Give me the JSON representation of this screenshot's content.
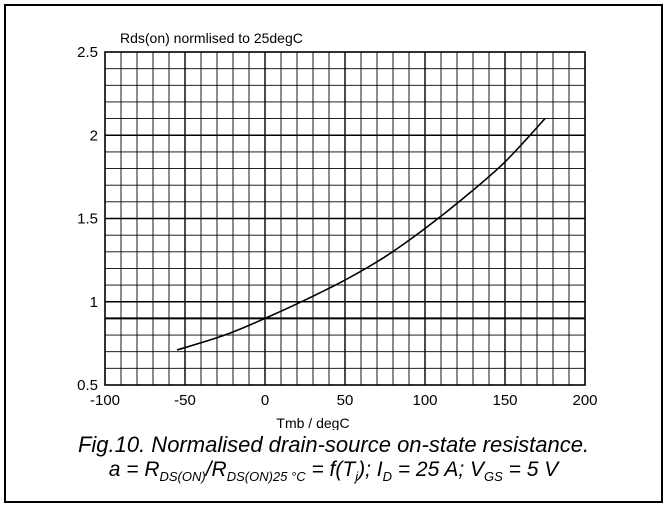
{
  "chart_data": {
    "type": "line",
    "title": "Rds(on) normlised to 25degC",
    "xlabel": "Tmb / degC",
    "ylabel": "",
    "xlim": [
      -100,
      200
    ],
    "ylim": [
      0.5,
      2.5
    ],
    "xticks": [
      -100,
      -50,
      0,
      50,
      100,
      150,
      200
    ],
    "xtick_labels": [
      "-100",
      "-50",
      "0",
      "50",
      "100",
      "150",
      "200"
    ],
    "yticks": [
      0.5,
      1,
      1.5,
      2,
      2.5
    ],
    "ytick_labels": [
      "0.5",
      "1",
      "1.5",
      "2",
      "2.5"
    ],
    "grid": true,
    "reference_lines_y": [
      0.9
    ],
    "series": [
      {
        "x": [
          -55,
          -25,
          0,
          25,
          50,
          75,
          100,
          125,
          150,
          175
        ],
        "y": [
          0.71,
          0.8,
          0.9,
          1.01,
          1.13,
          1.27,
          1.44,
          1.63,
          1.84,
          2.1
        ]
      }
    ]
  },
  "caption": {
    "line1": "Fig.10.   Normalised drain-source on-state resistance.",
    "line2": {
      "a_eq": "a = R",
      "sub1": "DS(ON)",
      "slash": "/R",
      "sub2": "DS(ON)25 °C",
      "mid": " = f(T",
      "sub3": "j",
      "rest1": "); I",
      "sub4": "D",
      "rest2": " = 25 A; V",
      "sub5": "GS",
      "rest3": " = 5 V"
    }
  }
}
